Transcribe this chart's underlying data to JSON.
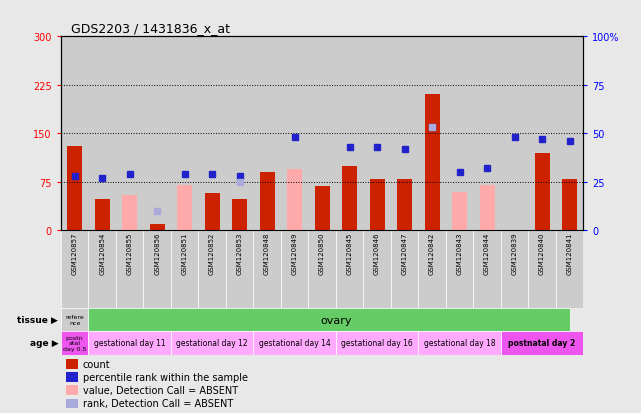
{
  "title": "GDS2203 / 1431836_x_at",
  "samples": [
    "GSM120857",
    "GSM120854",
    "GSM120855",
    "GSM120856",
    "GSM120851",
    "GSM120852",
    "GSM120853",
    "GSM120848",
    "GSM120849",
    "GSM120850",
    "GSM120845",
    "GSM120846",
    "GSM120847",
    "GSM120842",
    "GSM120843",
    "GSM120844",
    "GSM120839",
    "GSM120840",
    "GSM120841"
  ],
  "count_values": [
    130,
    48,
    null,
    10,
    null,
    58,
    48,
    90,
    null,
    68,
    100,
    80,
    80,
    210,
    null,
    null,
    null,
    120,
    80
  ],
  "count_absent": [
    null,
    null,
    55,
    null,
    70,
    null,
    null,
    null,
    95,
    null,
    null,
    null,
    null,
    null,
    60,
    70,
    null,
    null,
    null
  ],
  "rank_values": [
    28,
    27,
    29,
    null,
    29,
    29,
    28,
    null,
    48,
    null,
    43,
    43,
    42,
    53,
    30,
    32,
    48,
    47,
    46
  ],
  "rank_absent": [
    null,
    null,
    null,
    10,
    null,
    null,
    25,
    null,
    null,
    null,
    null,
    null,
    null,
    53,
    null,
    null,
    null,
    null,
    null
  ],
  "left_ylim": [
    0,
    300
  ],
  "left_yticks": [
    0,
    75,
    150,
    225,
    300
  ],
  "right_ylim": [
    0,
    100
  ],
  "right_yticks": [
    0,
    25,
    50,
    75,
    100
  ],
  "hlines": [
    75,
    150,
    225
  ],
  "bar_width": 0.55,
  "count_color": "#cc2200",
  "count_absent_color": "#ffaaaa",
  "rank_color": "#2222cc",
  "rank_absent_color": "#aaaadd",
  "col_bg_color": "#cccccc",
  "fig_bg_color": "#e8e8e8",
  "tissue_ref_color": "#cccccc",
  "tissue_ovary_color": "#66cc66",
  "age_light_color": "#ffaaff",
  "age_dark_color": "#ee55ee",
  "legend_items": [
    {
      "color": "#cc2200",
      "label": "count"
    },
    {
      "color": "#2222cc",
      "label": "percentile rank within the sample"
    },
    {
      "color": "#ffaaaa",
      "label": "value, Detection Call = ABSENT"
    },
    {
      "color": "#aaaadd",
      "label": "rank, Detection Call = ABSENT"
    }
  ]
}
